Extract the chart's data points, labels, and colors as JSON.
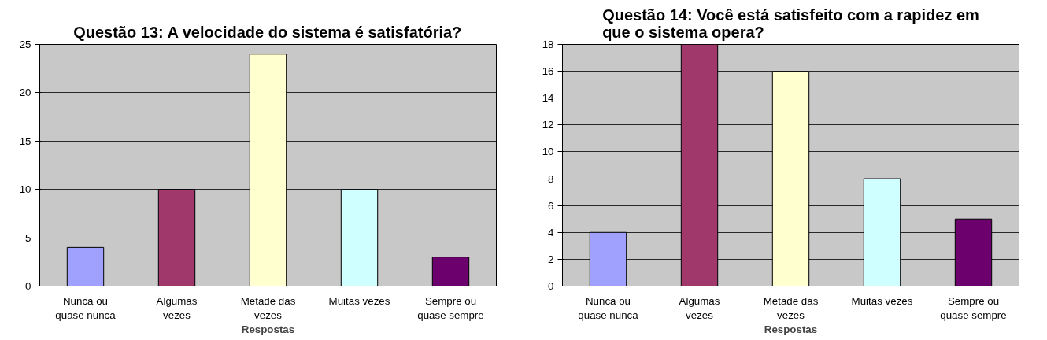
{
  "chart_data": [
    {
      "type": "bar",
      "title": "Questão 13: A velocidade do sistema é satisfatória?",
      "xlabel": "Respostas",
      "categories": [
        "Nunca ou\nquase nunca",
        "Algumas\nvezes",
        "Metade das\nvezes",
        "Muitas vezes",
        "Sempre ou\nquase sempre"
      ],
      "values": [
        4,
        10,
        24,
        10,
        3
      ],
      "colors": [
        "#a0a0ff",
        "#a0386c",
        "#ffffd0",
        "#d0ffff",
        "#6c006c"
      ],
      "ylim": [
        0,
        25
      ],
      "yticks": [
        0,
        5,
        10,
        15,
        20,
        25
      ],
      "grid": "y"
    },
    {
      "type": "bar",
      "title": "Questão 14: Você está satisfeito com a rapidez em\nque o sistema opera?",
      "xlabel": "Respostas",
      "categories": [
        "Nunca ou\nquase nunca",
        "Algumas\nvezes",
        "Metade das\nvezes",
        "Muitas vezes",
        "Sempre ou\nquase sempre"
      ],
      "values": [
        4,
        18,
        16,
        8,
        5
      ],
      "colors": [
        "#a0a0ff",
        "#a0386c",
        "#ffffd0",
        "#d0ffff",
        "#6c006c"
      ],
      "ylim": [
        0,
        18
      ],
      "yticks": [
        0,
        2,
        4,
        6,
        8,
        10,
        12,
        14,
        16,
        18
      ],
      "grid": "y"
    }
  ]
}
